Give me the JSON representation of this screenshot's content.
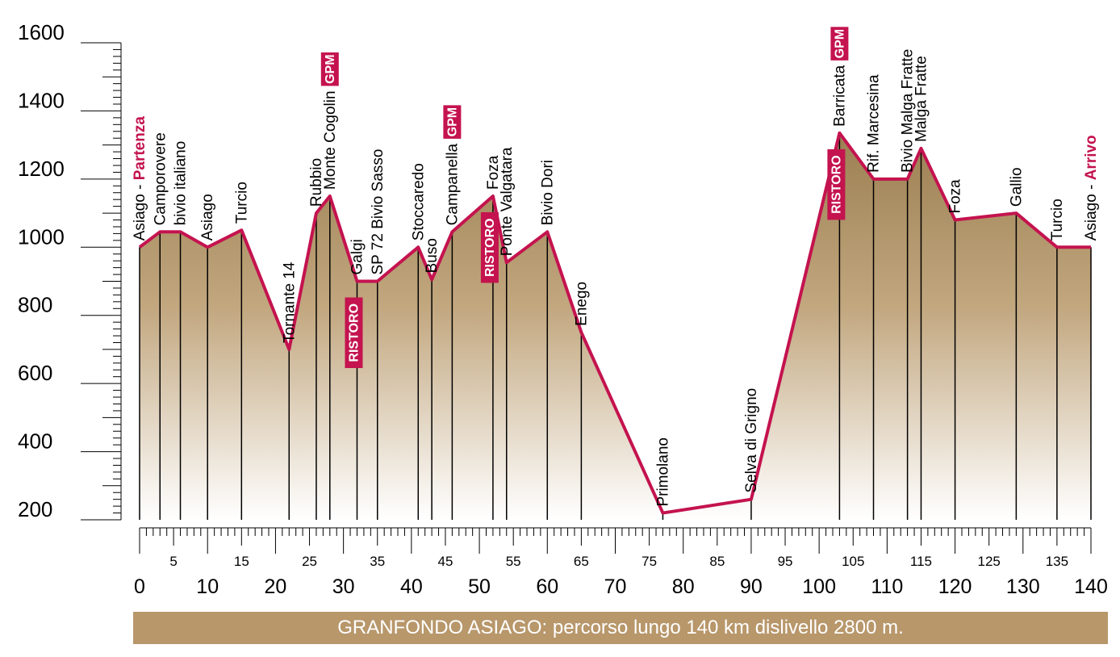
{
  "chart_data": {
    "type": "area",
    "title": "",
    "xlabel": "",
    "ylabel": "",
    "xlim": [
      0,
      140
    ],
    "ylim": [
      200,
      1600
    ],
    "yticks": [
      200,
      400,
      600,
      800,
      1000,
      1200,
      1400,
      1600
    ],
    "xticks_major": [
      0,
      10,
      20,
      30,
      40,
      50,
      60,
      70,
      80,
      90,
      100,
      110,
      120,
      130,
      140
    ],
    "xticks_minor_labeled": [
      5,
      15,
      25,
      35,
      45,
      55,
      65,
      75,
      85,
      95,
      105,
      115,
      125,
      135
    ],
    "colors": {
      "line": "#c4134f",
      "fill_top": "#9c7f52",
      "fill_bottom": "#ffffff",
      "footer": "#b8976b"
    },
    "profile": [
      {
        "km": 0,
        "alt": 1000,
        "label": "Asiago - ",
        "special": "Partenza"
      },
      {
        "km": 3,
        "alt": 1045,
        "label": "Camporovere"
      },
      {
        "km": 6,
        "alt": 1045,
        "label": "bivio italiano"
      },
      {
        "km": 10,
        "alt": 1000,
        "label": "Asiago"
      },
      {
        "km": 15,
        "alt": 1050,
        "label": "Turcio"
      },
      {
        "km": 22,
        "alt": 700,
        "label": "Tornante 14"
      },
      {
        "km": 26,
        "alt": 1100,
        "label": "Rubbio"
      },
      {
        "km": 28,
        "alt": 1150,
        "label": "Monte Cogolin",
        "badge": "GPM"
      },
      {
        "km": 32,
        "alt": 900,
        "label": "Galgi",
        "badge_low": "RISTORO"
      },
      {
        "km": 35,
        "alt": 900,
        "label": "SP 72 Bivio Sasso"
      },
      {
        "km": 41,
        "alt": 1000,
        "label": "Stoccaredo"
      },
      {
        "km": 43,
        "alt": 905,
        "label": "Buso"
      },
      {
        "km": 46,
        "alt": 1045,
        "label": "Campanella",
        "badge": "GPM"
      },
      {
        "km": 52,
        "alt": 1150,
        "label": "Foza",
        "badge_low": "RISTORO"
      },
      {
        "km": 54,
        "alt": 955,
        "label": "Ponte Valgatara"
      },
      {
        "km": 60,
        "alt": 1045,
        "label": "Bivio Dori"
      },
      {
        "km": 65,
        "alt": 750,
        "label": "Enego"
      },
      {
        "km": 77,
        "alt": 220,
        "label": "Primolano"
      },
      {
        "km": 90,
        "alt": 260,
        "label": "Selva di Grigno"
      },
      {
        "km": 103,
        "alt": 1335,
        "label": "Barricata",
        "badge": "GPM",
        "badge_low": "RISTORO"
      },
      {
        "km": 108,
        "alt": 1200,
        "label": "Rif. Marcesina"
      },
      {
        "km": 113,
        "alt": 1200,
        "label": "Bivio Malga Fratte"
      },
      {
        "km": 115,
        "alt": 1290,
        "label": "Malga Fratte"
      },
      {
        "km": 120,
        "alt": 1080,
        "label": "Foza"
      },
      {
        "km": 129,
        "alt": 1100,
        "label": "Gallio"
      },
      {
        "km": 135,
        "alt": 1000,
        "label": "Turcio"
      },
      {
        "km": 140,
        "alt": 1000,
        "label": "Asiago - ",
        "special": "Arrivo"
      }
    ]
  },
  "footer": {
    "caption": "GRANFONDO ASIAGO: percorso lungo 140 km dislivello 2800 m."
  }
}
